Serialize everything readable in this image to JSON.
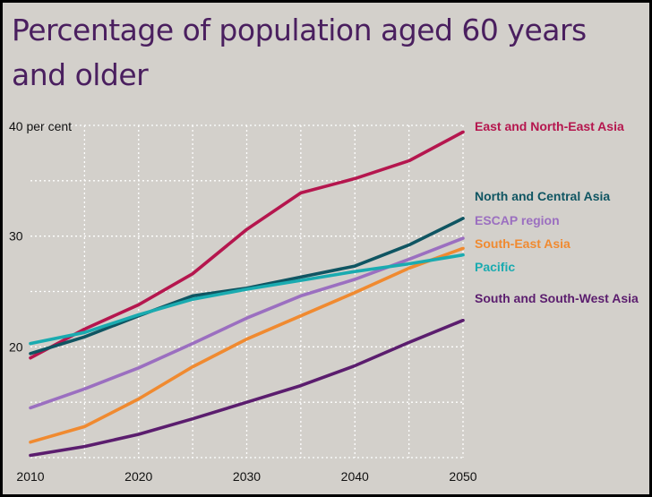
{
  "chart_data": {
    "type": "line",
    "title": "Percentage of population aged 60 years and older",
    "ylabel": "",
    "y_unit_label": "40 per cent",
    "xlabel": "",
    "x": [
      2010,
      2015,
      2020,
      2025,
      2030,
      2035,
      2040,
      2045,
      2050
    ],
    "xlim": [
      2010,
      2050
    ],
    "ylim": [
      10,
      40
    ],
    "x_ticks": [
      "2010",
      "2020",
      "2030",
      "2040",
      "2050"
    ],
    "y_ticks": [
      "20",
      "30"
    ],
    "grid": "dotted, on",
    "legend": "direct labels at right end of lines",
    "series": [
      {
        "name": "East and North-East Asia",
        "color": "#b5164e",
        "values": [
          19.0,
          21.6,
          23.8,
          26.6,
          30.6,
          33.9,
          35.2,
          36.8,
          39.4
        ]
      },
      {
        "name": "North and Central Asia",
        "color": "#0f5562",
        "values": [
          19.4,
          20.9,
          22.8,
          24.6,
          25.3,
          26.3,
          27.3,
          29.2,
          31.6
        ]
      },
      {
        "name": "ESCAP region",
        "color": "#9b6fc0",
        "values": [
          14.5,
          16.2,
          18.1,
          20.3,
          22.6,
          24.6,
          26.1,
          27.9,
          29.8
        ]
      },
      {
        "name": "South-East Asia",
        "color": "#f08a30",
        "values": [
          11.4,
          12.8,
          15.3,
          18.2,
          20.7,
          22.8,
          24.9,
          27.1,
          28.9
        ]
      },
      {
        "name": "Pacific",
        "color": "#1aabb0",
        "values": [
          20.3,
          21.3,
          22.9,
          24.3,
          25.2,
          26.0,
          26.8,
          27.5,
          28.3
        ]
      },
      {
        "name": "South and South-West Asia",
        "color": "#5b1d6e",
        "values": [
          10.2,
          11.0,
          12.1,
          13.5,
          15.0,
          16.5,
          18.3,
          20.4,
          22.4
        ]
      }
    ]
  }
}
